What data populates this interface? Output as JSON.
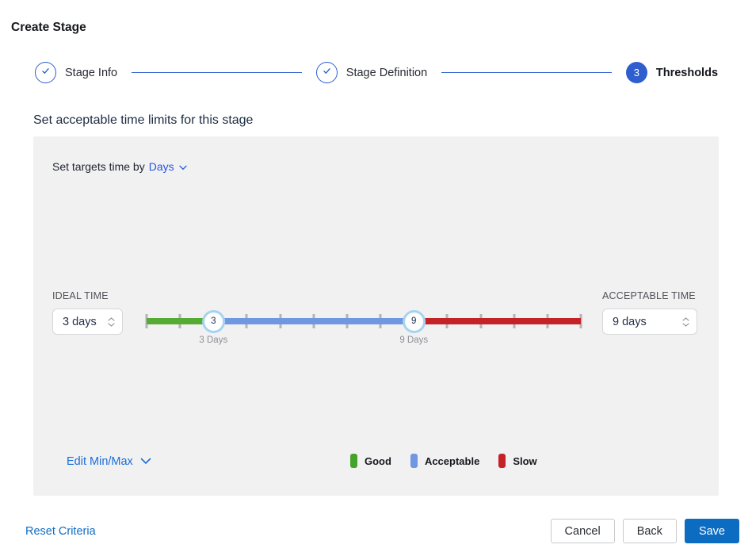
{
  "page": {
    "title": "Create Stage"
  },
  "stepper": {
    "steps": [
      {
        "label": "Stage Info",
        "state": "complete"
      },
      {
        "label": "Stage Definition",
        "state": "complete"
      },
      {
        "label": "Thresholds",
        "state": "active",
        "number": "3"
      }
    ]
  },
  "section": {
    "heading": "Set acceptable time limits for this stage"
  },
  "targets": {
    "prefix": "Set targets time by",
    "unit": "Days"
  },
  "ideal": {
    "label": "IDEAL TIME",
    "value": "3 days"
  },
  "acceptable": {
    "label": "ACCEPTABLE TIME",
    "value": "9 days"
  },
  "slider": {
    "min": 1,
    "max": 14,
    "ideal": 3,
    "acceptable": 9,
    "handles": [
      {
        "value": 3,
        "label": "3 Days"
      },
      {
        "value": 9,
        "label": "9 Days"
      }
    ],
    "segment_colors": {
      "good": "#55ab33",
      "acceptable": "#6f97e2",
      "slow": "#c42129"
    }
  },
  "edit_minmax": {
    "label": "Edit Min/Max"
  },
  "legend": [
    {
      "label": "Good",
      "color": "#44a32c"
    },
    {
      "label": "Acceptable",
      "color": "#6f97e2"
    },
    {
      "label": "Slow",
      "color": "#c42129"
    }
  ],
  "footer": {
    "reset": "Reset Criteria",
    "cancel": "Cancel",
    "back": "Back",
    "save": "Save"
  },
  "colors": {
    "accent_blue": "#2b5ecf",
    "link_blue": "#0f6cc4",
    "days_blue": "#2456e4",
    "save_blue": "#0c6cc2",
    "panel_bg": "#f1f1f2",
    "handle_border": "#a6d4f0",
    "tick_gray": "#b4b4b7"
  }
}
